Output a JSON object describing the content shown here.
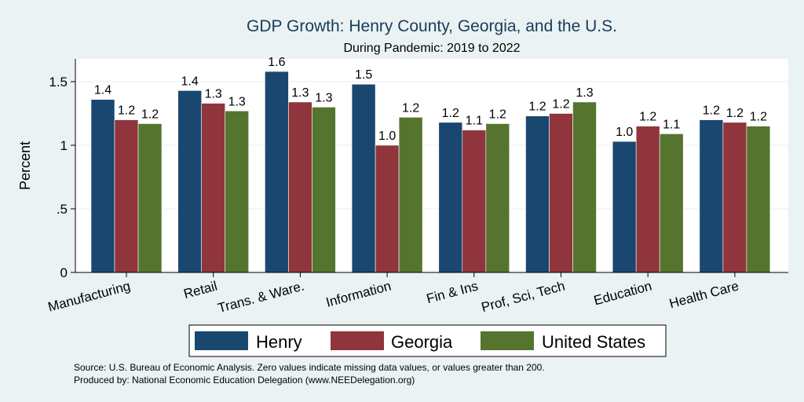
{
  "chart_data": {
    "type": "bar",
    "title": "GDP Growth: Henry County, Georgia, and the U.S.",
    "subtitle": "During Pandemic: 2019 to 2022",
    "ylabel": "Percent",
    "xlabel": "",
    "ylim": [
      0,
      1.7
    ],
    "yticks": [
      0,
      0.5,
      1,
      1.5
    ],
    "ytick_labels": [
      "0",
      ".5",
      "1",
      "1.5"
    ],
    "grid": true,
    "legend_position": "bottom",
    "categories": [
      "Manufacturing",
      "Retail",
      "Trans. & Ware.",
      "Information",
      "Fin & Ins",
      "Prof, Sci, Tech",
      "Education",
      "Health Care"
    ],
    "series": [
      {
        "name": "Henry",
        "color": "#1a476f",
        "values": [
          1.36,
          1.43,
          1.58,
          1.48,
          1.18,
          1.23,
          1.03,
          1.2
        ],
        "labels": [
          "1.4",
          "1.4",
          "1.6",
          "1.5",
          "1.2",
          "1.2",
          "1.0",
          "1.2"
        ]
      },
      {
        "name": "Georgia",
        "color": "#90353b",
        "values": [
          1.2,
          1.33,
          1.34,
          1.0,
          1.12,
          1.25,
          1.15,
          1.18
        ],
        "labels": [
          "1.2",
          "1.3",
          "1.3",
          "1.0",
          "1.1",
          "1.2",
          "1.2",
          "1.2"
        ]
      },
      {
        "name": "United States",
        "color": "#55752f",
        "values": [
          1.17,
          1.27,
          1.3,
          1.22,
          1.17,
          1.34,
          1.09,
          1.15
        ],
        "labels": [
          "1.2",
          "1.3",
          "1.3",
          "1.2",
          "1.2",
          "1.3",
          "1.1",
          "1.2"
        ]
      }
    ]
  },
  "notes": {
    "source": "Source: U.S. Bureau of Economic Analysis. Zero values indicate missing data values, or values greater than 200.",
    "produced": "Produced by: National Economic Education Delegation (www.NEEDelegation.org)"
  }
}
